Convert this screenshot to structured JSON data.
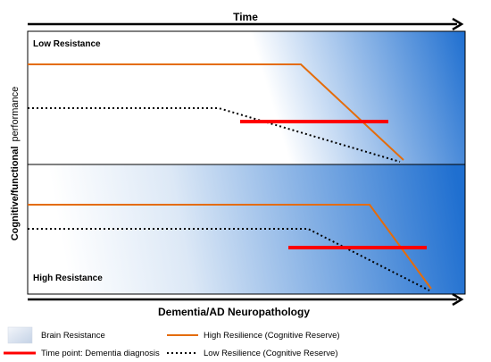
{
  "top_axis": {
    "label": "Time"
  },
  "bottom_axis": {
    "label": "Dementia/AD Neuropathology"
  },
  "y_axis": {
    "label_part1": "Cognitive/functional",
    "label_part2": "performance"
  },
  "panels": {
    "top": {
      "label": "Low Resistance"
    },
    "bottom": {
      "label": "High Resistance"
    }
  },
  "legend": {
    "brain_resistance": "Brain Resistance",
    "dementia_diagnosis": "Time point: Dementia diagnosis",
    "high_resilience": "High Resilience (Cognitive Reserve)",
    "low_resilience": "Low Resilience (Cognitive Reserve)"
  },
  "colors": {
    "high_resilience_line": "#E46C0A",
    "low_resilience_line": "#000000",
    "diagnosis_line": "#FF0000",
    "gradient_light": "#FFFFFF",
    "gradient_dark": "#1F6FD0",
    "frame": "#000000"
  }
}
